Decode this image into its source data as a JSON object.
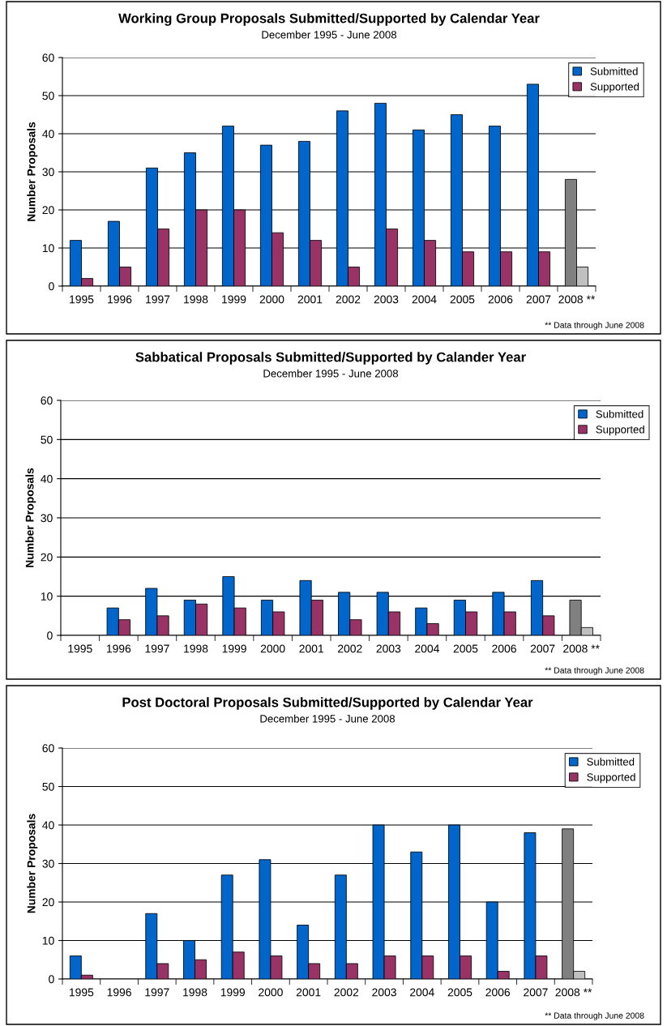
{
  "chart_data": [
    {
      "type": "bar",
      "title": "Working Group Proposals Submitted/Supported by Calendar Year",
      "subtitle": "December 1995 - June 2008",
      "ylabel": "Number Proposals",
      "categories": [
        "1995",
        "1996",
        "1997",
        "1998",
        "1999",
        "2000",
        "2001",
        "2002",
        "2003",
        "2004",
        "2005",
        "2006",
        "2007",
        "2008 **"
      ],
      "series": [
        {
          "name": "Submitted",
          "color": "#0066cc",
          "colors": [
            "#0066cc",
            "#0066cc",
            "#0066cc",
            "#0066cc",
            "#0066cc",
            "#0066cc",
            "#0066cc",
            "#0066cc",
            "#0066cc",
            "#0066cc",
            "#0066cc",
            "#0066cc",
            "#0066cc",
            "#808080"
          ],
          "values": [
            12,
            17,
            31,
            35,
            42,
            37,
            38,
            46,
            48,
            41,
            45,
            42,
            53,
            28
          ]
        },
        {
          "name": "Supported",
          "color": "#993366",
          "colors": [
            "#993366",
            "#993366",
            "#993366",
            "#993366",
            "#993366",
            "#993366",
            "#993366",
            "#993366",
            "#993366",
            "#993366",
            "#993366",
            "#993366",
            "#993366",
            "#c0c0c0"
          ],
          "values": [
            2,
            5,
            15,
            20,
            20,
            14,
            12,
            5,
            15,
            12,
            9,
            9,
            9,
            5
          ]
        }
      ],
      "ylim": [
        0,
        60
      ],
      "yticks": [
        0,
        10,
        20,
        30,
        40,
        50,
        60
      ],
      "grid": "y",
      "legend": "top right",
      "annotations": [
        "** Data through June 2008"
      ]
    },
    {
      "type": "bar",
      "title": "Sabbatical Proposals Submitted/Supported by Calander Year",
      "subtitle": "December 1995 - June 2008",
      "ylabel": "Number Proposals",
      "categories": [
        "1995",
        "1996",
        "1997",
        "1998",
        "1999",
        "2000",
        "2001",
        "2002",
        "2003",
        "2004",
        "2005",
        "2006",
        "2007",
        "2008 **"
      ],
      "series": [
        {
          "name": "Submitted",
          "color": "#0066cc",
          "colors": [
            "#0066cc",
            "#0066cc",
            "#0066cc",
            "#0066cc",
            "#0066cc",
            "#0066cc",
            "#0066cc",
            "#0066cc",
            "#0066cc",
            "#0066cc",
            "#0066cc",
            "#0066cc",
            "#0066cc",
            "#808080"
          ],
          "values": [
            null,
            7,
            12,
            9,
            15,
            9,
            14,
            11,
            11,
            7,
            9,
            11,
            14,
            9
          ]
        },
        {
          "name": "Supported",
          "color": "#993366",
          "colors": [
            "#993366",
            "#993366",
            "#993366",
            "#993366",
            "#993366",
            "#993366",
            "#993366",
            "#993366",
            "#993366",
            "#993366",
            "#993366",
            "#993366",
            "#993366",
            "#c0c0c0"
          ],
          "values": [
            null,
            4,
            5,
            8,
            7,
            6,
            9,
            4,
            6,
            3,
            6,
            6,
            5,
            2
          ]
        }
      ],
      "ylim": [
        0,
        60
      ],
      "yticks": [
        0,
        10,
        20,
        30,
        40,
        50,
        60
      ],
      "grid": "y",
      "legend": "top right",
      "annotations": [
        "** Data through June 2008"
      ]
    },
    {
      "type": "bar",
      "title": "Post Doctoral Proposals Submitted/Supported by Calendar Year",
      "subtitle": "December 1995 - June 2008",
      "ylabel": "Number Proposals",
      "categories": [
        "1995",
        "1996",
        "1997",
        "1998",
        "1999",
        "2000",
        "2001",
        "2002",
        "2003",
        "2004",
        "2005",
        "2006",
        "2007",
        "2008 **"
      ],
      "series": [
        {
          "name": "Submitted",
          "color": "#0066cc",
          "colors": [
            "#0066cc",
            "#0066cc",
            "#0066cc",
            "#0066cc",
            "#0066cc",
            "#0066cc",
            "#0066cc",
            "#0066cc",
            "#0066cc",
            "#0066cc",
            "#0066cc",
            "#0066cc",
            "#0066cc",
            "#808080"
          ],
          "values": [
            6,
            null,
            17,
            10,
            27,
            31,
            14,
            27,
            40,
            33,
            40,
            20,
            38,
            39
          ]
        },
        {
          "name": "Supported",
          "color": "#993366",
          "colors": [
            "#993366",
            "#993366",
            "#993366",
            "#993366",
            "#993366",
            "#993366",
            "#993366",
            "#993366",
            "#993366",
            "#993366",
            "#993366",
            "#993366",
            "#993366",
            "#c0c0c0"
          ],
          "values": [
            1,
            null,
            4,
            5,
            7,
            6,
            4,
            4,
            6,
            6,
            6,
            2,
            6,
            2
          ]
        }
      ],
      "ylim": [
        0,
        60
      ],
      "yticks": [
        0,
        10,
        20,
        30,
        40,
        50,
        60
      ],
      "grid": "y",
      "legend": "top right",
      "annotations": [
        "** Data through June 2008"
      ]
    }
  ]
}
